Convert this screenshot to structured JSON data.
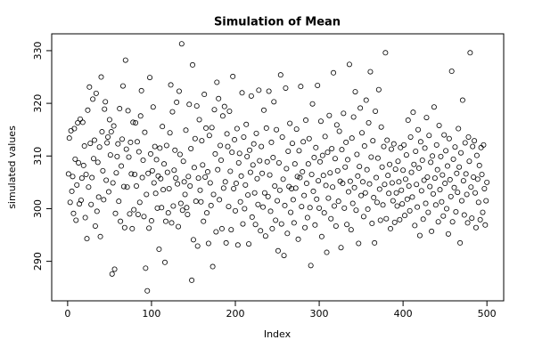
{
  "chart_data": {
    "type": "scatter",
    "title": "Simulation of Mean",
    "x_label": "Index",
    "y_label": "simulated values",
    "xlim": [
      -19,
      520
    ],
    "xticks": [
      0,
      100,
      200,
      300,
      400,
      500
    ],
    "ylim": [
      282.5,
      333.2
    ],
    "yticks": [
      290,
      300,
      310,
      320,
      330
    ],
    "color": "#000000",
    "values": [
      306.6,
      313.4,
      301.2,
      314.8,
      303.3,
      306.1,
      299.1,
      315.2,
      309.4,
      297.8,
      304.5,
      316.3,
      308.7,
      300.9,
      317.0,
      301.6,
      305.8,
      316.4,
      308.2,
      311.9,
      298.3,
      306.5,
      294.3,
      318.7,
      304.1,
      323.1,
      312.4,
      300.8,
      305.9,
      320.8,
      309.5,
      313.0,
      296.7,
      321.9,
      299.5,
      308.8,
      302.2,
      311.7,
      294.7,
      325.0,
      314.6,
      307.2,
      301.7,
      318.9,
      320.3,
      305.4,
      312.5,
      313.6,
      303.2,
      316.9,
      310.2,
      314.6,
      287.6,
      304.9,
      315.7,
      288.5,
      299.1,
      306.8,
      309.9,
      312.3,
      301.4,
      319.0,
      297.6,
      308.1,
      313.2,
      323.3,
      304.2,
      296.4,
      328.2,
      311.3,
      304.1,
      318.6,
      309.8,
      299.0,
      312.6,
      306.6,
      296.2,
      316.4,
      299.8,
      306.5,
      316.3,
      304.3,
      312.7,
      298.9,
      310.8,
      301.2,
      317.6,
      322.4,
      305.9,
      309.2,
      298.5,
      314.5,
      288.7,
      302.7,
      284.4,
      306.7,
      296.3,
      324.9,
      310.4,
      297.7,
      307.2,
      319.3,
      304.9,
      311.8,
      302.9,
      309.3,
      300.1,
      306.2,
      292.3,
      311.5,
      305.7,
      300.2,
      315.6,
      303.6,
      308.5,
      289.8,
      297.6,
      312.0,
      306.9,
      299.2,
      303.8,
      314.4,
      323.5,
      297.3,
      318.4,
      300.5,
      307.3,
      311.1,
      305.8,
      320.2,
      304.7,
      296.6,
      322.3,
      310.3,
      301.0,
      331.3,
      299.7,
      309.0,
      305.1,
      302.7,
      314.9,
      300.2,
      298.9,
      306.1,
      319.8,
      304.3,
      311.4,
      286.4,
      327.3,
      294.1,
      307.8,
      313.3,
      301.4,
      319.5,
      292.9,
      305.8,
      316.9,
      303.5,
      301.3,
      312.9,
      308.3,
      297.6,
      321.7,
      306.0,
      315.3,
      299.2,
      307.0,
      293.4,
      313.9,
      304.9,
      300.6,
      315.4,
      289.0,
      302.7,
      318.8,
      310.4,
      295.6,
      324.0,
      307.4,
      320.9,
      301.7,
      312.0,
      309.2,
      296.2,
      317.6,
      303.9,
      319.4,
      305.1,
      293.5,
      314.2,
      311.8,
      300.4,
      318.5,
      307.1,
      296.0,
      310.7,
      325.1,
      303.8,
      313.1,
      299.6,
      304.8,
      315.2,
      293.1,
      308.7,
      310.5,
      301.3,
      306.2,
      322.0,
      297.1,
      313.6,
      300.0,
      304.5,
      316.0,
      309.9,
      302.6,
      293.3,
      311.1,
      306.9,
      321.4,
      298.4,
      308.3,
      312.3,
      303.0,
      297.0,
      314.3,
      305.7,
      300.8,
      322.5,
      309.1,
      295.8,
      311.8,
      306.7,
      300.3,
      318.7,
      303.0,
      294.8,
      315.3,
      308.9,
      302.3,
      322.3,
      306.4,
      299.5,
      312.6,
      296.2,
      309.7,
      320.3,
      304.3,
      297.8,
      315.0,
      301.5,
      292.0,
      308.7,
      303.5,
      325.4,
      297.1,
      313.6,
      305.6,
      291.1,
      300.6,
      322.9,
      307.6,
      295.3,
      310.9,
      304.2,
      316.2,
      299.3,
      303.8,
      312.4,
      301.7,
      297.3,
      308.5,
      303.9,
      315.1,
      306.1,
      294.2,
      311.0,
      305.9,
      323.2,
      300.4,
      307.0,
      312.7,
      302.5,
      296.4,
      316.8,
      304.8,
      298.3,
      308.5,
      313.3,
      300.2,
      289.2,
      306.5,
      319.9,
      303.3,
      309.7,
      296.9,
      311.6,
      301.8,
      323.4,
      305.3,
      300.1,
      308.9,
      316.6,
      294.7,
      310.1,
      306.3,
      299.2,
      313.7,
      304.4,
      291.7,
      310.7,
      302.0,
      317.7,
      306.8,
      298.1,
      311.4,
      304.1,
      325.8,
      300.5,
      309.5,
      296.7,
      315.9,
      307.2,
      301.4,
      314.7,
      305.2,
      292.6,
      311.2,
      304.8,
      318.1,
      300.1,
      307.9,
      312.6,
      297.0,
      309.3,
      303.2,
      327.4,
      305.2,
      296.0,
      313.4,
      301.0,
      317.4,
      304.0,
      322.2,
      299.7,
      310.3,
      306.2,
      293.4,
      308.0,
      319.1,
      302.5,
      314.4,
      305.1,
      298.5,
      311.9,
      303.0,
      320.6,
      307.4,
      299.9,
      316.3,
      304.7,
      326.0,
      309.8,
      297.2,
      312.9,
      302.1,
      293.5,
      318.5,
      305.9,
      301.2,
      309.6,
      322.6,
      303.7,
      297.8,
      315.5,
      307.9,
      300.7,
      311.8,
      304.6,
      329.6,
      298.1,
      313.0,
      306.3,
      302.9,
      308.4,
      296.2,
      311.3,
      304.9,
      301.5,
      312.3,
      297.4,
      307.5,
      303.0,
      300.5,
      309.0,
      305.1,
      297.9,
      311.6,
      303.5,
      300.9,
      307.3,
      312.1,
      298.7,
      305.6,
      310.2,
      301.8,
      316.8,
      304.3,
      299.6,
      313.6,
      306.9,
      302.2,
      318.3,
      308.4,
      296.8,
      310.9,
      304.6,
      300.3,
      315.0,
      307.7,
      294.9,
      312.7,
      303.4,
      309.2,
      298.0,
      305.4,
      311.5,
      301.0,
      317.3,
      306.0,
      299.3,
      313.9,
      304.2,
      308.8,
      295.7,
      310.0,
      302.8,
      319.3,
      305.8,
      300.7,
      312.1,
      307.4,
      297.5,
      315.8,
      303.6,
      309.9,
      301.3,
      306.4,
      298.6,
      314.0,
      304.8,
      311.0,
      300.0,
      308.1,
      295.2,
      313.3,
      305.5,
      302.3,
      326.1,
      297.5,
      309.4,
      304.0,
      311.7,
      299.4,
      306.7,
      303.1,
      315.2,
      307.9,
      293.5,
      310.6,
      301.5,
      320.6,
      305.3,
      298.8,
      312.5,
      306.6,
      302.7,
      297.3,
      313.6,
      309.0,
      329.6,
      304.1,
      298.2,
      311.8,
      306.0,
      312.9,
      303.0,
      296.4,
      310.1,
      305.6,
      301.2,
      308.2,
      297.9,
      311.6,
      306.5,
      299.3,
      312.1,
      303.8,
      296.9,
      301.5,
      305.0
    ]
  }
}
